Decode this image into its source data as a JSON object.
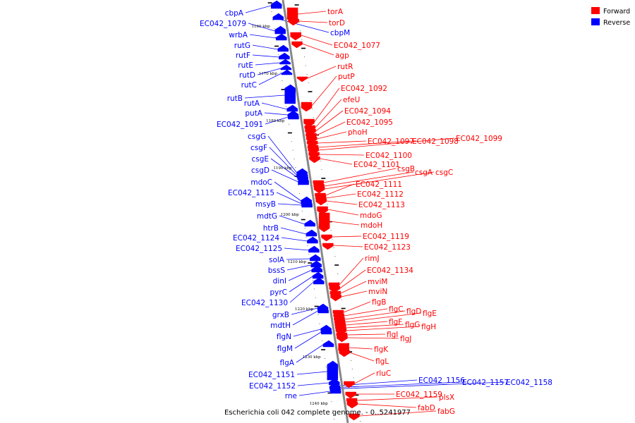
{
  "caption": "Escherichia coli 042 complete genome. - 0..5241977",
  "legend": [
    {
      "label": "Forward",
      "color": "#ff0000"
    },
    {
      "label": "Reverse",
      "color": "#0000ff"
    }
  ],
  "colors": {
    "forward": "#ff0000",
    "reverse": "#0000ff",
    "backbone": "#888888"
  },
  "kbp_ticks": [
    "1160 kbp",
    "1170 kbp",
    "1180 kbp",
    "1190 kbp",
    "1200 kbp",
    "1210 kbp",
    "1220 kbp",
    "1230 kbp",
    "1240 kbp"
  ],
  "reverse_genes": [
    {
      "label": "cbpA"
    },
    {
      "label": "EC042_1079"
    },
    {
      "label": "wrbA"
    },
    {
      "label": "rutG"
    },
    {
      "label": "rutF"
    },
    {
      "label": "rutE"
    },
    {
      "label": "rutD"
    },
    {
      "label": "rutC"
    },
    {
      "label": "rutB"
    },
    {
      "label": "rutA"
    },
    {
      "label": "putA"
    },
    {
      "label": "EC042_1091"
    },
    {
      "label": "csgG"
    },
    {
      "label": "csgF"
    },
    {
      "label": "csgE"
    },
    {
      "label": "csgD"
    },
    {
      "label": "mdoC"
    },
    {
      "label": "EC042_1115"
    },
    {
      "label": "msyB"
    },
    {
      "label": "mdtG"
    },
    {
      "label": "htrB"
    },
    {
      "label": "EC042_1124"
    },
    {
      "label": "EC042_1125"
    },
    {
      "label": "solA"
    },
    {
      "label": "bssS"
    },
    {
      "label": "dinI"
    },
    {
      "label": "pyrC"
    },
    {
      "label": "EC042_1130"
    },
    {
      "label": "grxB"
    },
    {
      "label": "mdtH"
    },
    {
      "label": "flgN"
    },
    {
      "label": "flgM"
    },
    {
      "label": "flgA"
    },
    {
      "label": "EC042_1151"
    },
    {
      "label": "EC042_1152"
    },
    {
      "label": "rne"
    },
    {
      "label": "cbpM"
    },
    {
      "label": "EC042_1156"
    },
    {
      "label": "EC042_1157"
    },
    {
      "label": "EC042_1158"
    }
  ],
  "forward_genes": [
    {
      "label": "torA"
    },
    {
      "label": "torD"
    },
    {
      "label": "EC042_1077"
    },
    {
      "label": "agp"
    },
    {
      "label": "rutR"
    },
    {
      "label": "putP"
    },
    {
      "label": "EC042_1092"
    },
    {
      "label": "efeU"
    },
    {
      "label": "EC042_1094"
    },
    {
      "label": "EC042_1095"
    },
    {
      "label": "phoH"
    },
    {
      "label": "EC042_1097"
    },
    {
      "label": "EC042_1098"
    },
    {
      "label": "EC042_1099"
    },
    {
      "label": "EC042_1100"
    },
    {
      "label": "EC042_1101"
    },
    {
      "label": "csgB"
    },
    {
      "label": "csgA"
    },
    {
      "label": "csgC"
    },
    {
      "label": "EC042_1111"
    },
    {
      "label": "EC042_1112"
    },
    {
      "label": "EC042_1113"
    },
    {
      "label": "mdoG"
    },
    {
      "label": "mdoH"
    },
    {
      "label": "EC042_1119"
    },
    {
      "label": "EC042_1123"
    },
    {
      "label": "rimJ"
    },
    {
      "label": "EC042_1134"
    },
    {
      "label": "mviM"
    },
    {
      "label": "mviN"
    },
    {
      "label": "flgB"
    },
    {
      "label": "flgC"
    },
    {
      "label": "flgD"
    },
    {
      "label": "flgE"
    },
    {
      "label": "flgF"
    },
    {
      "label": "flgG"
    },
    {
      "label": "flgH"
    },
    {
      "label": "flgI"
    },
    {
      "label": "flgJ"
    },
    {
      "label": "flgK"
    },
    {
      "label": "flgL"
    },
    {
      "label": "rluC"
    },
    {
      "label": "EC042_1159"
    },
    {
      "label": "plsX"
    },
    {
      "label": "fabD"
    },
    {
      "label": "fabG"
    }
  ]
}
